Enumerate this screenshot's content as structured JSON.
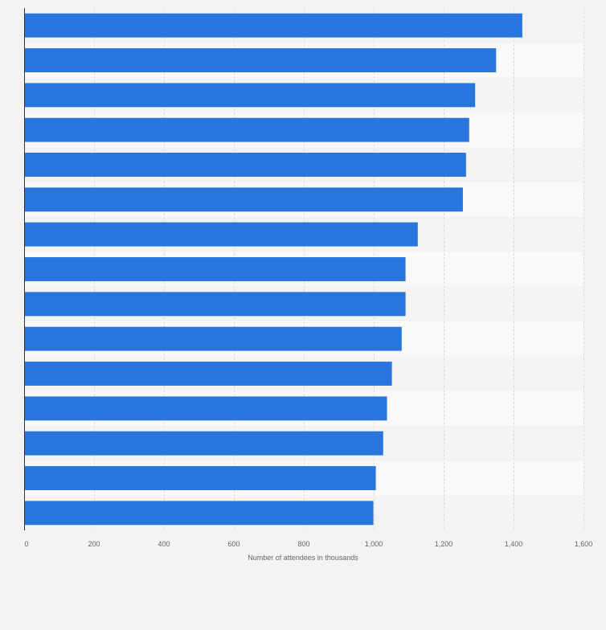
{
  "chart_data": {
    "type": "bar",
    "orientation": "horizontal",
    "xlabel": "Number of attendees in thousands",
    "xlim": [
      0,
      1600
    ],
    "x_ticks": [
      0,
      200,
      400,
      600,
      800,
      1000,
      1200,
      1400,
      1600
    ],
    "x_tick_labels": [
      "0",
      "200",
      "400",
      "600",
      "800",
      "1,000",
      "1,200",
      "1,400",
      "1,600"
    ],
    "values": [
      1425,
      1350,
      1290,
      1273,
      1264,
      1255,
      1126,
      1091,
      1091,
      1080,
      1052,
      1038,
      1027,
      1006,
      999
    ],
    "grid": true,
    "colors": {
      "bar": "#2876dd",
      "background": "#f3f3f3",
      "band_light": "#f9f9f9",
      "gridline": "#dcdcdc",
      "axis": "#333333",
      "tick_text": "#666666"
    }
  }
}
